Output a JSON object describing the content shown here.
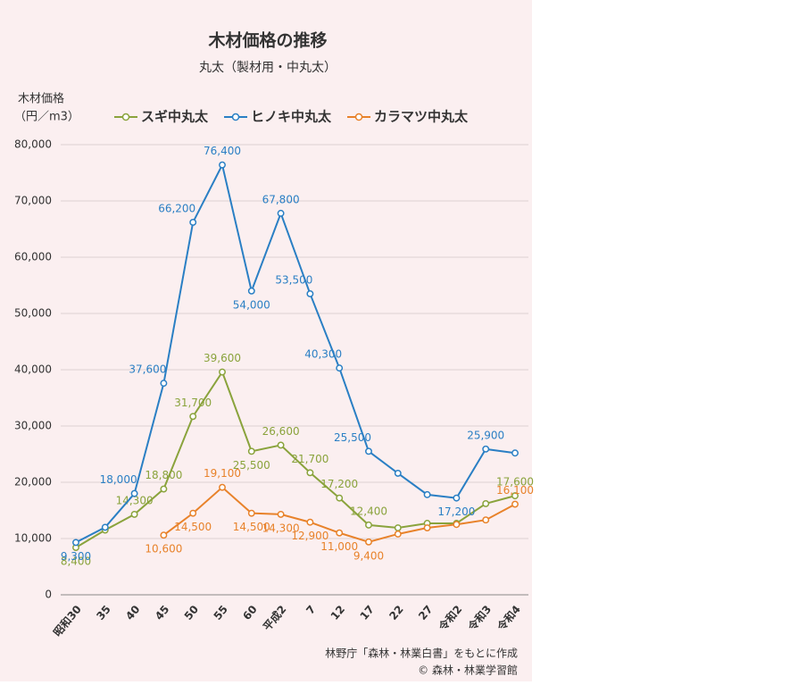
{
  "chart_data": {
    "type": "line",
    "title": "木材価格の推移",
    "subtitle": "丸太（製材用・中丸太）",
    "ylabel": [
      "木材価格",
      "（円／m3）"
    ],
    "categories": [
      "昭和30",
      "35",
      "40",
      "45",
      "50",
      "55",
      "60",
      "平成2",
      "7",
      "12",
      "17",
      "22",
      "27",
      "令和2",
      "令和3",
      "令和4"
    ],
    "series": [
      {
        "name": "スギ中丸太",
        "color": "#8aa33c",
        "values": [
          8400,
          11500,
          14300,
          18800,
          31700,
          39600,
          25500,
          26600,
          21700,
          17200,
          12400,
          11900,
          12700,
          12700,
          16200,
          17600
        ],
        "value_labels": [
          "8,400",
          null,
          "14,300",
          "18,800",
          "31,700",
          "39,600",
          "25,500",
          "26,600",
          "21,700",
          "17,200",
          "12,400",
          null,
          null,
          null,
          null,
          "17,600"
        ]
      },
      {
        "name": "ヒノキ中丸太",
        "color": "#2a7fc4",
        "values": [
          9300,
          12000,
          18000,
          37600,
          66200,
          76400,
          54000,
          67800,
          53500,
          40300,
          25500,
          21600,
          17800,
          17200,
          25900,
          25200
        ],
        "value_labels": [
          "9,300",
          null,
          "18,000",
          "37,600",
          "66,200",
          "76,400",
          "54,000",
          "67,800",
          "53,500",
          "40,300",
          "25,500",
          null,
          null,
          "17,200",
          "25,900",
          null
        ]
      },
      {
        "name": "カラマツ中丸太",
        "color": "#e8822a",
        "values": [
          null,
          null,
          null,
          10600,
          14500,
          19100,
          14500,
          14300,
          12900,
          11000,
          9400,
          10800,
          11900,
          12500,
          13300,
          16100
        ],
        "value_labels": [
          null,
          null,
          null,
          "10,600",
          "14,500",
          "19,100",
          "14,500",
          "14,300",
          "12,900",
          "11,000",
          "9,400",
          null,
          null,
          null,
          null,
          "16,100"
        ]
      }
    ],
    "ylim": [
      0,
      80000
    ],
    "yticks": [
      0,
      {
        "value": 10000,
        "label": "10,000"
      },
      {
        "value": 20000,
        "label": "20,000"
      },
      {
        "value": 30000,
        "label": "30,000"
      },
      {
        "value": 40000,
        "label": "40,000"
      },
      {
        "value": 50000,
        "label": "50,000"
      },
      {
        "value": 60000,
        "label": "60,000"
      },
      {
        "value": 70000,
        "label": "70,000"
      },
      {
        "value": 80000,
        "label": "80,000"
      }
    ],
    "grid": true,
    "legend": "top",
    "source": [
      "林野庁「森林・林業白書」をもとに作成",
      "© 森林・林業学習館"
    ]
  }
}
